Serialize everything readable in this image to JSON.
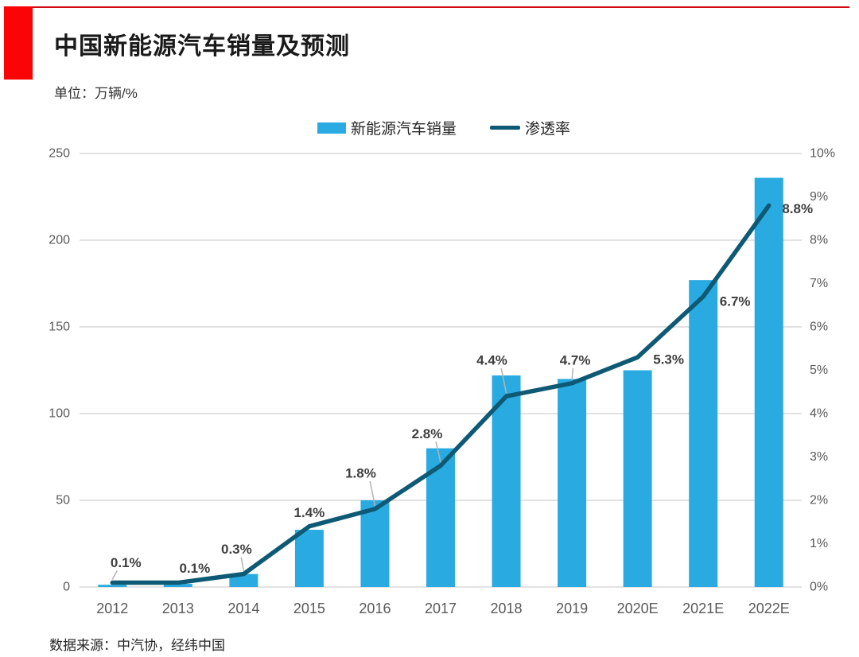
{
  "header": {
    "title": "中国新能源汽车销量及预测",
    "unit_label": "单位：万辆/%",
    "source": "数据来源：中汽协，经纬中国"
  },
  "legend": {
    "items": [
      {
        "label": "新能源汽车销量",
        "type": "bar"
      },
      {
        "label": "渗透率",
        "type": "line"
      }
    ]
  },
  "colors": {
    "bar": "#29abe2",
    "line": "#0e5a75",
    "accent_red": "#fb0405",
    "grid": "#d9d9d9",
    "axis_text": "#595959",
    "data_label_text": "#3f3f3f",
    "leader_line": "#b3b3b3"
  },
  "chart_data": {
    "type": "bar",
    "title": "中国新能源汽车销量及预测",
    "categories": [
      "2012",
      "2013",
      "2014",
      "2015",
      "2016",
      "2017",
      "2018",
      "2019",
      "2020E",
      "2021E",
      "2022E"
    ],
    "series": [
      {
        "name": "新能源汽车销量",
        "type": "bar",
        "axis": "left",
        "values": [
          1.3,
          1.8,
          7.5,
          33,
          50,
          80,
          122,
          120,
          125,
          177,
          236
        ]
      },
      {
        "name": "渗透率",
        "type": "line",
        "axis": "right",
        "values": [
          0.1,
          0.1,
          0.3,
          1.4,
          1.8,
          2.8,
          4.4,
          4.7,
          5.3,
          6.7,
          8.8
        ],
        "point_labels": [
          "0.1%",
          "0.1%",
          "0.3%",
          "1.4%",
          "1.8%",
          "2.8%",
          "4.4%",
          "4.7%",
          "5.3%",
          "6.7%",
          "8.8%"
        ]
      }
    ],
    "left_axis": {
      "min": 0,
      "max": 250,
      "step": 50,
      "ticks": [
        "0",
        "50",
        "100",
        "150",
        "200",
        "250"
      ]
    },
    "right_axis": {
      "min": 0,
      "max": 10,
      "step": 1,
      "ticks": [
        "0%",
        "1%",
        "2%",
        "3%",
        "4%",
        "5%",
        "6%",
        "7%",
        "8%",
        "9%",
        "10%"
      ]
    },
    "grid": "horizontal",
    "legend_position": "top-center"
  }
}
